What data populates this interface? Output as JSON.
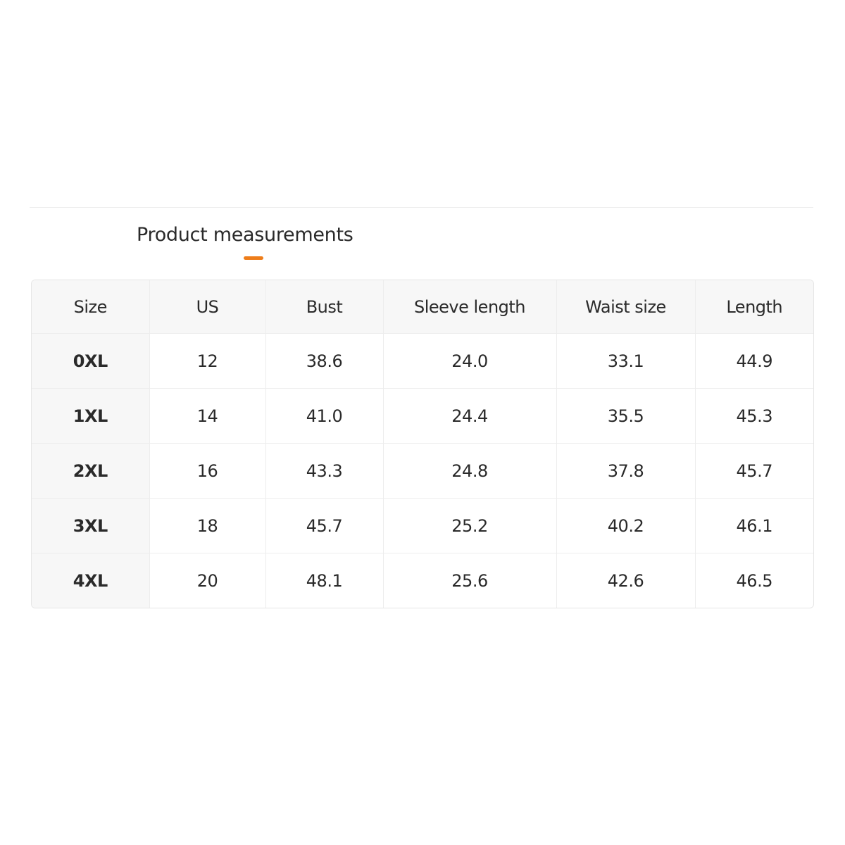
{
  "title": "Product measurements",
  "colors": {
    "accent": "#ee7d1a",
    "header_bg": "#f7f7f7"
  },
  "table": {
    "headers": [
      "Size",
      "US",
      "Bust",
      "Sleeve length",
      "Waist size",
      "Length"
    ],
    "rows": [
      [
        "0XL",
        "12",
        "38.6",
        "24.0",
        "33.1",
        "44.9"
      ],
      [
        "1XL",
        "14",
        "41.0",
        "24.4",
        "35.5",
        "45.3"
      ],
      [
        "2XL",
        "16",
        "43.3",
        "24.8",
        "37.8",
        "45.7"
      ],
      [
        "3XL",
        "18",
        "45.7",
        "25.2",
        "40.2",
        "46.1"
      ],
      [
        "4XL",
        "20",
        "48.1",
        "25.6",
        "42.6",
        "46.5"
      ]
    ]
  }
}
